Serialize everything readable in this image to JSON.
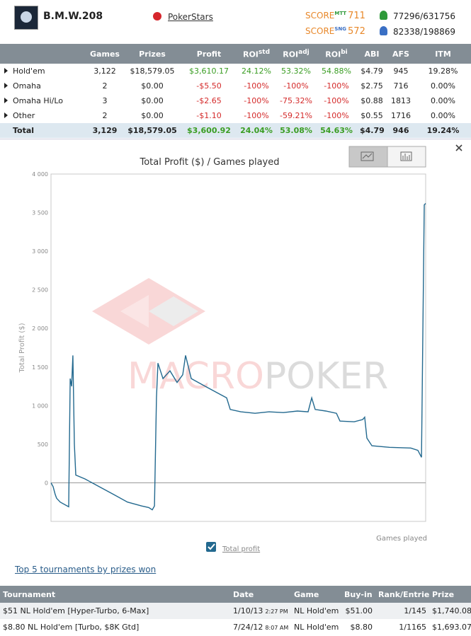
{
  "header": {
    "player": "B.M.W.208",
    "site": "PokerStars",
    "scores": [
      {
        "label": "SCORE",
        "badge": "MTT",
        "value": "711",
        "rank": "77296/631756"
      },
      {
        "label": "SCORE",
        "badge": "SNG",
        "value": "572",
        "rank": "82338/198869"
      }
    ]
  },
  "stats": {
    "columns": [
      {
        "text": "Games"
      },
      {
        "text": "Prizes"
      },
      {
        "text": "Profit"
      },
      {
        "text": "ROI",
        "sup": "std"
      },
      {
        "text": "ROI",
        "sup": "adj"
      },
      {
        "text": "ROI",
        "sup": "bi"
      },
      {
        "text": "ABI"
      },
      {
        "text": "AFS"
      },
      {
        "text": "ITM"
      }
    ],
    "rows": [
      {
        "name": "Hold'em",
        "cells": [
          "3,122",
          "$18,579.05",
          "$3,610.17",
          "24.12%",
          "53.32%",
          "54.88%",
          "$4.79",
          "945",
          "19.28%"
        ]
      },
      {
        "name": "Omaha",
        "cells": [
          "2",
          "$0.00",
          "-$5.50",
          "-100%",
          "-100%",
          "-100%",
          "$2.75",
          "716",
          "0.00%"
        ]
      },
      {
        "name": "Omaha Hi/Lo",
        "cells": [
          "3",
          "$0.00",
          "-$2.65",
          "-100%",
          "-75.32%",
          "-100%",
          "$0.88",
          "1813",
          "0.00%"
        ]
      },
      {
        "name": "Other",
        "cells": [
          "2",
          "$0.00",
          "-$1.10",
          "-100%",
          "-59.21%",
          "-100%",
          "$0.55",
          "1716",
          "0.00%"
        ]
      }
    ],
    "total": {
      "name": "Total",
      "cells": [
        "3,129",
        "$18,579.05",
        "$3,600.92",
        "24.04%",
        "53.08%",
        "54.63%",
        "$4.79",
        "946",
        "19.24%"
      ]
    }
  },
  "chart_data": {
    "type": "line",
    "title": "Total Profit ($) / Games played",
    "y_label": "Total Profit ($)",
    "x_label": "Games played",
    "watermark": {
      "first": "MACRO",
      "second": "POKER"
    },
    "x": [
      0,
      18,
      35,
      47,
      77,
      136,
      148,
      160,
      172,
      183,
      195,
      207,
      284,
      402,
      521,
      639,
      757,
      816,
      846,
      864,
      881,
      893,
      935,
      994,
      1053,
      1100,
      1124,
      1171,
      1289,
      1408,
      1467,
      1497,
      1585,
      1704,
      1822,
      1940,
      2058,
      2147,
      2177,
      2206,
      2295,
      2384,
      2413,
      2532,
      2603,
      2620,
      2638,
      2680,
      2827,
      3005,
      3064,
      3094,
      3117,
      3129
    ],
    "series": [
      {
        "name": "Total profit",
        "color": "#23698f",
        "values": [
          0,
          -50,
          -150,
          -200,
          -250,
          -300,
          -310,
          1350,
          1250,
          1650,
          500,
          100,
          50,
          -50,
          -150,
          -250,
          -300,
          -320,
          -350,
          -300,
          1100,
          1550,
          1350,
          1450,
          1300,
          1400,
          1650,
          1350,
          1250,
          1150,
          1100,
          950,
          920,
          900,
          920,
          910,
          930,
          920,
          1100,
          950,
          930,
          900,
          800,
          790,
          820,
          850,
          580,
          480,
          460,
          450,
          420,
          330,
          3600,
          3620
        ]
      }
    ],
    "xlim": [
      0,
      3129
    ],
    "ylim": [
      -500,
      4000
    ],
    "yticks": [
      0,
      500,
      {
        "value": 1000,
        "label": "1 000"
      },
      {
        "value": 1500,
        "label": "1 500"
      },
      {
        "value": 2000,
        "label": "2 000"
      },
      {
        "value": 2500,
        "label": "2 500"
      },
      {
        "value": 3000,
        "label": "3 000"
      },
      {
        "value": 3500,
        "label": "3 500"
      },
      {
        "value": 4000,
        "label": "4 000"
      }
    ],
    "grid": false
  },
  "top_tournaments": {
    "title": "Top 5 tournaments by prizes won",
    "columns": [
      "Tournament",
      "Date",
      "Game",
      "Buy-in",
      "Rank/Entries",
      "Prize"
    ],
    "rows": [
      {
        "name": "$51 NL Hold'em [Hyper-Turbo, 6-Max]",
        "date": "1/10/13",
        "time": "2:27 PM",
        "game": "NL Hold'em",
        "buyin": "$51.00",
        "rank": "1/145",
        "prize": "$1,740.08"
      },
      {
        "name": "$8.80 NL Hold'em [Turbo, $8K Gtd]",
        "date": "7/24/12",
        "time": "8:07 AM",
        "game": "NL Hold'em",
        "buyin": "$8.80",
        "rank": "1/1165",
        "prize": "$1,693.07"
      }
    ]
  }
}
